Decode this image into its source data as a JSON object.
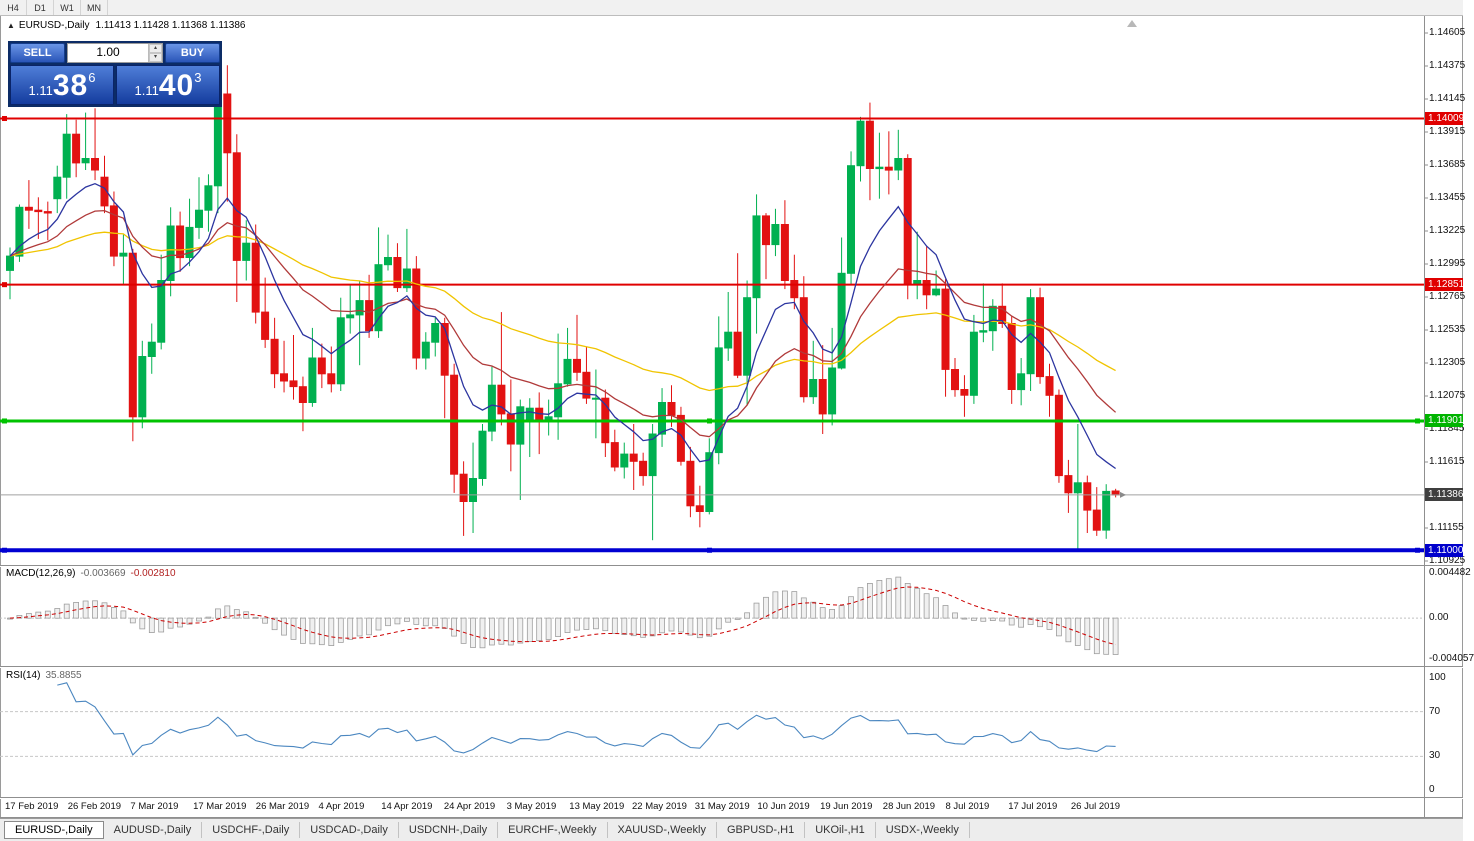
{
  "toolbar": {
    "timeframes": [
      "H4",
      "D1",
      "W1",
      "MN"
    ]
  },
  "chart_header": {
    "collapse_icon": "▲",
    "title": "EURUSD-,Daily",
    "ohlc": "1.11413 1.11428 1.11368 1.11386"
  },
  "trade_panel": {
    "sell_label": "SELL",
    "buy_label": "BUY",
    "volume": "1.00",
    "sell_price": {
      "big": "1.11",
      "large": "38",
      "sup": "6"
    },
    "buy_price": {
      "big": "1.11",
      "large": "40",
      "sup": "3"
    }
  },
  "price_scale": {
    "ticks": [
      1.14605,
      1.14375,
      1.14145,
      1.13915,
      1.13685,
      1.13455,
      1.13225,
      1.12995,
      1.12765,
      1.12535,
      1.12305,
      1.12075,
      1.11845,
      1.11615,
      1.11155,
      1.10925
    ],
    "badges": [
      {
        "label": "1.14009",
        "price": 1.14009,
        "color": "#e00000"
      },
      {
        "label": "1.12851",
        "price": 1.12851,
        "color": "#e00000"
      },
      {
        "label": "1.11901",
        "price": 1.11901,
        "color": "#00b400"
      },
      {
        "label": "1.11386",
        "price": 1.11386,
        "color": "#3f3f3f"
      },
      {
        "label": "1.11000",
        "price": 1.11,
        "color": "#0000cc"
      }
    ]
  },
  "hlines": [
    {
      "price": 1.14009,
      "color": "#e00000",
      "width": 2,
      "handles": "l"
    },
    {
      "price": 1.12851,
      "color": "#e00000",
      "width": 2,
      "handles": "l"
    },
    {
      "price": 1.11901,
      "color": "#00c300",
      "width": 3,
      "handles": "lcr"
    },
    {
      "price": 1.11,
      "color": "#0000d2",
      "width": 4,
      "handles": "lcr"
    }
  ],
  "bid_line": {
    "price": 1.11386,
    "color": "#a0a0a0"
  },
  "icons": {
    "chart_shift": "triangle-up",
    "price_pointer": "triangle-right",
    "volume_up": "▴",
    "volume_down": "▾"
  },
  "indicators": {
    "macd": {
      "name": "MACD(12,26,9)",
      "main": "-0.003669",
      "signal": "-0.002810",
      "scale": [
        "0.004482",
        "0.00",
        "-0.004057"
      ],
      "range": [
        -0.004057,
        0.004482
      ],
      "params": {
        "fast": 12,
        "slow": 26,
        "signal": 9
      }
    },
    "rsi": {
      "name": "RSI(14)",
      "value": "35.8855",
      "scale": [
        "100",
        "70",
        "30",
        "0"
      ],
      "levels": [
        70,
        30
      ],
      "period": 14
    }
  },
  "x_axis": {
    "labels": [
      "17 Feb 2019",
      "26 Feb 2019",
      "7 Mar 2019",
      "17 Mar 2019",
      "26 Mar 2019",
      "4 Apr 2019",
      "14 Apr 2019",
      "24 Apr 2019",
      "3 May 2019",
      "13 May 2019",
      "22 May 2019",
      "31 May 2019",
      "10 Jun 2019",
      "19 Jun 2019",
      "28 Jun 2019",
      "8 Jul 2019",
      "17 Jul 2019",
      "26 Jul 2019"
    ]
  },
  "tabs": [
    {
      "label": "EURUSD-,Daily",
      "active": true
    },
    {
      "label": "AUDUSD-,Daily",
      "active": false
    },
    {
      "label": "USDCHF-,Daily",
      "active": false
    },
    {
      "label": "USDCAD-,Daily",
      "active": false
    },
    {
      "label": "USDCNH-,Daily",
      "active": false
    },
    {
      "label": "EURCHF-,Weekly",
      "active": false
    },
    {
      "label": "XAUUSD-,Weekly",
      "active": false
    },
    {
      "label": "GBPUSD-,H1",
      "active": false
    },
    {
      "label": "UKOil-,H1",
      "active": false
    },
    {
      "label": "USDX-,Weekly",
      "active": false
    }
  ],
  "chart_data": {
    "type": "candlestick",
    "symbol": "EURUSD-",
    "timeframe": "Daily",
    "colors": {
      "bull": "#00b050",
      "bear": "#e21212",
      "ma_fast": "#2c35a0",
      "ma_mid": "#b03a3a",
      "ma_slow": "#f0c400",
      "hist_fill": "#f0f0f0",
      "hist_stroke": "#999999",
      "macd_signal": "#cc0000",
      "rsi": "#4b87c0"
    },
    "moving_averages": [
      {
        "type": "ema",
        "period": 9,
        "color_key": "ma_fast"
      },
      {
        "type": "ema",
        "period": 21,
        "color_key": "ma_mid"
      },
      {
        "type": "ema",
        "period": 50,
        "color_key": "ma_slow"
      }
    ],
    "ohlc": [
      [
        "2019-02-18",
        1.1295,
        1.1311,
        1.1275,
        1.1305
      ],
      [
        "2019-02-19",
        1.1305,
        1.1341,
        1.1301,
        1.1339
      ],
      [
        "2019-02-20",
        1.1339,
        1.1358,
        1.1324,
        1.1337
      ],
      [
        "2019-02-21",
        1.1337,
        1.1346,
        1.1317,
        1.1336
      ],
      [
        "2019-02-22",
        1.1336,
        1.1343,
        1.1316,
        1.1335
      ],
      [
        "2019-02-25",
        1.1345,
        1.1368,
        1.1335,
        1.136
      ],
      [
        "2019-02-26",
        1.136,
        1.1404,
        1.1345,
        1.139
      ],
      [
        "2019-02-27",
        1.139,
        1.14,
        1.136,
        1.137
      ],
      [
        "2019-02-28",
        1.137,
        1.1405,
        1.1365,
        1.1373
      ],
      [
        "2019-03-01",
        1.1373,
        1.1408,
        1.1358,
        1.1365
      ],
      [
        "2019-03-04",
        1.136,
        1.1375,
        1.1335,
        1.134
      ],
      [
        "2019-03-05",
        1.134,
        1.135,
        1.1298,
        1.1305
      ],
      [
        "2019-03-06",
        1.1305,
        1.132,
        1.1285,
        1.1307
      ],
      [
        "2019-03-07",
        1.1307,
        1.131,
        1.1176,
        1.1193
      ],
      [
        "2019-03-08",
        1.1193,
        1.1246,
        1.1185,
        1.1235
      ],
      [
        "2019-03-11",
        1.1235,
        1.1258,
        1.1223,
        1.1245
      ],
      [
        "2019-03-12",
        1.1245,
        1.1306,
        1.124,
        1.1288
      ],
      [
        "2019-03-13",
        1.1288,
        1.1339,
        1.1277,
        1.1326
      ],
      [
        "2019-03-14",
        1.1326,
        1.1336,
        1.1294,
        1.1304
      ],
      [
        "2019-03-15",
        1.1304,
        1.1345,
        1.1298,
        1.1325
      ],
      [
        "2019-03-18",
        1.1325,
        1.136,
        1.1317,
        1.1337
      ],
      [
        "2019-03-19",
        1.1337,
        1.1362,
        1.1322,
        1.1354
      ],
      [
        "2019-03-20",
        1.1354,
        1.1448,
        1.1335,
        1.1418
      ],
      [
        "2019-03-21",
        1.1418,
        1.1438,
        1.1343,
        1.1377
      ],
      [
        "2019-03-22",
        1.1377,
        1.139,
        1.1273,
        1.1302
      ],
      [
        "2019-03-25",
        1.1302,
        1.133,
        1.1288,
        1.1314
      ],
      [
        "2019-03-26",
        1.1314,
        1.1327,
        1.1258,
        1.1266
      ],
      [
        "2019-03-27",
        1.1266,
        1.129,
        1.1241,
        1.1247
      ],
      [
        "2019-03-28",
        1.1247,
        1.1262,
        1.1213,
        1.1223
      ],
      [
        "2019-03-29",
        1.1223,
        1.1246,
        1.121,
        1.1218
      ],
      [
        "2019-04-01",
        1.1218,
        1.125,
        1.1205,
        1.1214
      ],
      [
        "2019-04-02",
        1.1214,
        1.1221,
        1.1183,
        1.1203
      ],
      [
        "2019-04-03",
        1.1203,
        1.1255,
        1.12,
        1.1234
      ],
      [
        "2019-04-04",
        1.1234,
        1.1244,
        1.1213,
        1.1223
      ],
      [
        "2019-04-05",
        1.1223,
        1.1242,
        1.121,
        1.1216
      ],
      [
        "2019-04-08",
        1.1216,
        1.1276,
        1.1211,
        1.1262
      ],
      [
        "2019-04-09",
        1.1262,
        1.1285,
        1.1251,
        1.1264
      ],
      [
        "2019-04-10",
        1.1264,
        1.1288,
        1.1229,
        1.1274
      ],
      [
        "2019-04-11",
        1.1274,
        1.1292,
        1.1248,
        1.1253
      ],
      [
        "2019-04-12",
        1.1253,
        1.1325,
        1.1248,
        1.1299
      ],
      [
        "2019-04-15",
        1.1299,
        1.132,
        1.1295,
        1.1304
      ],
      [
        "2019-04-16",
        1.1304,
        1.1314,
        1.128,
        1.1283
      ],
      [
        "2019-04-17",
        1.1283,
        1.1324,
        1.128,
        1.1296
      ],
      [
        "2019-04-18",
        1.1296,
        1.1305,
        1.1226,
        1.1234
      ],
      [
        "2019-04-19",
        1.1234,
        1.1252,
        1.1226,
        1.1245
      ],
      [
        "2019-04-22",
        1.1245,
        1.1262,
        1.1235,
        1.1258
      ],
      [
        "2019-04-23",
        1.1258,
        1.1262,
        1.1192,
        1.1222
      ],
      [
        "2019-04-24",
        1.1222,
        1.123,
        1.114,
        1.1153
      ],
      [
        "2019-04-25",
        1.1153,
        1.1162,
        1.111,
        1.1134
      ],
      [
        "2019-04-26",
        1.1134,
        1.1175,
        1.1112,
        1.115
      ],
      [
        "2019-04-29",
        1.115,
        1.1188,
        1.1145,
        1.1183
      ],
      [
        "2019-04-30",
        1.1183,
        1.1228,
        1.1176,
        1.1215
      ],
      [
        "2019-05-01",
        1.1215,
        1.1266,
        1.1187,
        1.1195
      ],
      [
        "2019-05-02",
        1.1195,
        1.1219,
        1.1155,
        1.1174
      ],
      [
        "2019-05-03",
        1.1174,
        1.1205,
        1.1135,
        1.12
      ],
      [
        "2019-05-06",
        1.119,
        1.1206,
        1.1165,
        1.1199
      ],
      [
        "2019-05-07",
        1.1199,
        1.121,
        1.1167,
        1.119
      ],
      [
        "2019-05-08",
        1.119,
        1.1205,
        1.118,
        1.1193
      ],
      [
        "2019-05-09",
        1.1193,
        1.1251,
        1.1177,
        1.1216
      ],
      [
        "2019-05-10",
        1.1216,
        1.1255,
        1.1214,
        1.1233
      ],
      [
        "2019-05-13",
        1.1233,
        1.1264,
        1.1218,
        1.1224
      ],
      [
        "2019-05-14",
        1.1224,
        1.1242,
        1.1202,
        1.1206
      ],
      [
        "2019-05-15",
        1.1206,
        1.1226,
        1.1178,
        1.1206
      ],
      [
        "2019-05-16",
        1.1206,
        1.1212,
        1.1165,
        1.1175
      ],
      [
        "2019-05-17",
        1.1175,
        1.1184,
        1.1155,
        1.1158
      ],
      [
        "2019-05-20",
        1.1158,
        1.1175,
        1.115,
        1.1167
      ],
      [
        "2019-05-21",
        1.1167,
        1.1188,
        1.1142,
        1.1162
      ],
      [
        "2019-05-22",
        1.1162,
        1.1168,
        1.1145,
        1.1152
      ],
      [
        "2019-05-23",
        1.1152,
        1.1188,
        1.1107,
        1.1181
      ],
      [
        "2019-05-24",
        1.1181,
        1.1213,
        1.1172,
        1.1203
      ],
      [
        "2019-05-27",
        1.1203,
        1.1215,
        1.1186,
        1.1194
      ],
      [
        "2019-05-28",
        1.1194,
        1.12,
        1.1159,
        1.1162
      ],
      [
        "2019-05-29",
        1.1162,
        1.1172,
        1.1123,
        1.1131
      ],
      [
        "2019-05-30",
        1.1131,
        1.1145,
        1.1116,
        1.1127
      ],
      [
        "2019-05-31",
        1.1127,
        1.1178,
        1.1125,
        1.1168
      ],
      [
        "2019-06-03",
        1.1168,
        1.1263,
        1.116,
        1.1241
      ],
      [
        "2019-06-04",
        1.1241,
        1.128,
        1.1232,
        1.1252
      ],
      [
        "2019-06-05",
        1.1252,
        1.1307,
        1.122,
        1.1222
      ],
      [
        "2019-06-06",
        1.1222,
        1.1288,
        1.1201,
        1.1276
      ],
      [
        "2019-06-07",
        1.1276,
        1.1348,
        1.1251,
        1.1333
      ],
      [
        "2019-06-10",
        1.1333,
        1.1335,
        1.1289,
        1.1313
      ],
      [
        "2019-06-11",
        1.1313,
        1.1338,
        1.1305,
        1.1327
      ],
      [
        "2019-06-12",
        1.1327,
        1.1344,
        1.1282,
        1.1288
      ],
      [
        "2019-06-13",
        1.1288,
        1.1306,
        1.1268,
        1.1276
      ],
      [
        "2019-06-14",
        1.1276,
        1.1291,
        1.1203,
        1.1207
      ],
      [
        "2019-06-17",
        1.1207,
        1.1246,
        1.1202,
        1.1219
      ],
      [
        "2019-06-18",
        1.1219,
        1.1243,
        1.1181,
        1.1195
      ],
      [
        "2019-06-19",
        1.1195,
        1.1255,
        1.1187,
        1.1227
      ],
      [
        "2019-06-20",
        1.1227,
        1.1318,
        1.1226,
        1.1293
      ],
      [
        "2019-06-21",
        1.1293,
        1.1378,
        1.1285,
        1.1368
      ],
      [
        "2019-06-24",
        1.1368,
        1.1402,
        1.1357,
        1.1399
      ],
      [
        "2019-06-25",
        1.1399,
        1.1412,
        1.1344,
        1.1366
      ],
      [
        "2019-06-26",
        1.1366,
        1.1391,
        1.1345,
        1.1367
      ],
      [
        "2019-06-27",
        1.1367,
        1.1392,
        1.1348,
        1.1365
      ],
      [
        "2019-06-28",
        1.1365,
        1.1393,
        1.1358,
        1.1373
      ],
      [
        "2019-07-01",
        1.1373,
        1.1376,
        1.1275,
        1.1285
      ],
      [
        "2019-07-02",
        1.1285,
        1.1322,
        1.1275,
        1.1288
      ],
      [
        "2019-07-03",
        1.1288,
        1.1312,
        1.1268,
        1.1278
      ],
      [
        "2019-07-04",
        1.1278,
        1.1295,
        1.1277,
        1.1282
      ],
      [
        "2019-07-05",
        1.1282,
        1.1289,
        1.1207,
        1.1226
      ],
      [
        "2019-07-08",
        1.1226,
        1.1234,
        1.1207,
        1.1212
      ],
      [
        "2019-07-09",
        1.1212,
        1.1222,
        1.1193,
        1.1208
      ],
      [
        "2019-07-10",
        1.1208,
        1.1264,
        1.1202,
        1.1252
      ],
      [
        "2019-07-11",
        1.1252,
        1.1286,
        1.1245,
        1.1253
      ],
      [
        "2019-07-12",
        1.1253,
        1.1275,
        1.1239,
        1.127
      ],
      [
        "2019-07-15",
        1.127,
        1.1286,
        1.1255,
        1.1258
      ],
      [
        "2019-07-16",
        1.1258,
        1.1263,
        1.1202,
        1.1212
      ],
      [
        "2019-07-17",
        1.1212,
        1.1234,
        1.1201,
        1.1223
      ],
      [
        "2019-07-18",
        1.1223,
        1.1282,
        1.1211,
        1.1276
      ],
      [
        "2019-07-19",
        1.1276,
        1.1283,
        1.1216,
        1.1221
      ],
      [
        "2019-07-22",
        1.1221,
        1.123,
        1.1193,
        1.1208
      ],
      [
        "2019-07-23",
        1.1208,
        1.1212,
        1.1147,
        1.1152
      ],
      [
        "2019-07-24",
        1.1152,
        1.1163,
        1.1126,
        1.114
      ],
      [
        "2019-07-25",
        1.114,
        1.1188,
        1.1101,
        1.1147
      ],
      [
        "2019-07-26",
        1.1147,
        1.1152,
        1.1112,
        1.1128
      ],
      [
        "2019-07-29",
        1.1128,
        1.1144,
        1.111,
        1.1114
      ],
      [
        "2019-07-30",
        1.1114,
        1.1146,
        1.1108,
        1.1141
      ],
      [
        "2019-07-31",
        1.11413,
        1.11428,
        1.11368,
        1.11386
      ]
    ]
  }
}
